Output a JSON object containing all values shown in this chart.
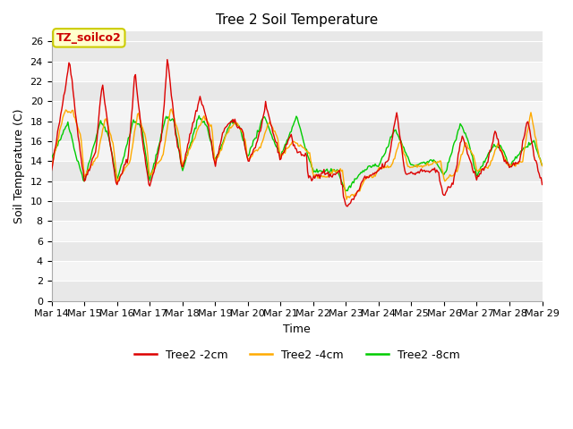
{
  "title": "Tree 2 Soil Temperature",
  "xlabel": "Time",
  "ylabel": "Soil Temperature (C)",
  "annotation_text": "TZ_soilco2",
  "annotation_bg": "#ffffcc",
  "annotation_border": "#cccc00",
  "annotation_text_color": "#cc0000",
  "ylim": [
    0,
    27
  ],
  "yticks": [
    0,
    2,
    4,
    6,
    8,
    10,
    12,
    14,
    16,
    18,
    20,
    22,
    24,
    26
  ],
  "xtick_labels": [
    "Mar 14",
    "Mar 15",
    "Mar 16",
    "Mar 17",
    "Mar 18",
    "Mar 19",
    "Mar 20",
    "Mar 21",
    "Mar 22",
    "Mar 23",
    "Mar 24",
    "Mar 25",
    "Mar 26",
    "Mar 27",
    "Mar 28",
    "Mar 29"
  ],
  "line_colors": [
    "#dd0000",
    "#ffaa00",
    "#00cc00"
  ],
  "line_labels": [
    "Tree2 -2cm",
    "Tree2 -4cm",
    "Tree2 -8cm"
  ],
  "fig_bg": "#ffffff",
  "plot_bg_light": "#eeeeee",
  "plot_bg_dark": "#e0e0e0",
  "grid_color": "#ffffff",
  "title_fontsize": 11,
  "axis_label_fontsize": 9,
  "tick_label_fontsize": 8,
  "legend_fontsize": 9,
  "n_points": 480,
  "y2_key_points": {
    "day_peaks": [
      24.2,
      22.0,
      23.0,
      24.3,
      20.5,
      19.5,
      16.6,
      12.3,
      19.0,
      13.0,
      16.7,
      17.0,
      18.2,
      11.5
    ],
    "day_troughs": [
      13.0,
      11.9,
      11.5,
      11.4,
      13.3,
      14.2,
      14.4,
      9.5,
      13.1,
      12.7,
      10.6,
      12.2,
      13.5,
      11.5
    ]
  }
}
